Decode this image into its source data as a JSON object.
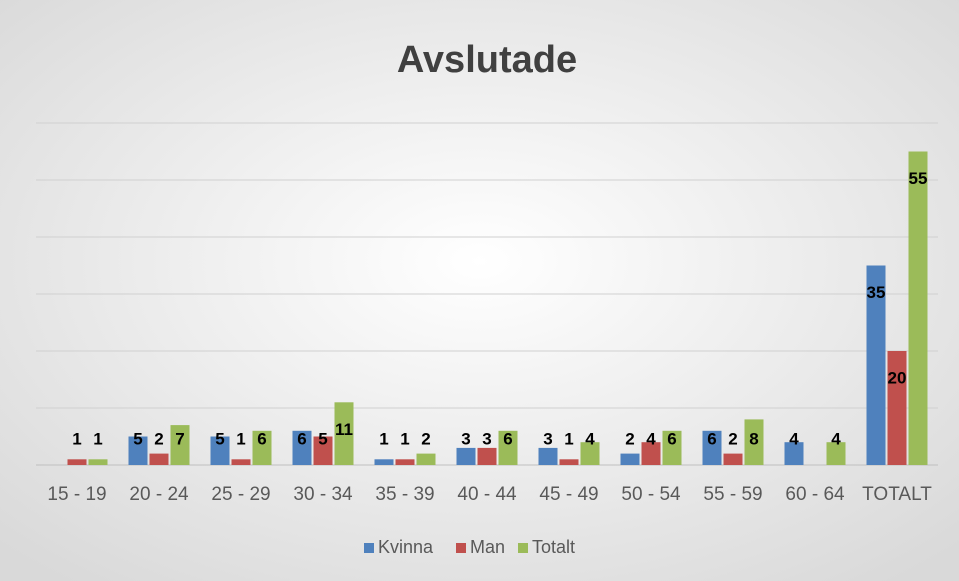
{
  "chart_data": {
    "type": "bar",
    "title": "Avslutade",
    "categories": [
      "15 - 19",
      "20 - 24",
      "25 - 29",
      "30 - 34",
      "35 - 39",
      "40 - 44",
      "45 - 49",
      "50 - 54",
      "55 - 59",
      "60 - 64",
      "TOTALT"
    ],
    "series": [
      {
        "name": "Kvinna",
        "color": "#4f81bd",
        "values": [
          null,
          5,
          5,
          6,
          1,
          3,
          3,
          2,
          6,
          4,
          35
        ]
      },
      {
        "name": "Man",
        "color": "#c0504d",
        "values": [
          1,
          2,
          1,
          5,
          1,
          3,
          1,
          4,
          2,
          null,
          20
        ]
      },
      {
        "name": "Totalt",
        "color": "#9bbb59",
        "values": [
          1,
          7,
          6,
          11,
          2,
          6,
          4,
          6,
          8,
          4,
          55
        ]
      }
    ],
    "ylim": [
      0,
      60
    ],
    "yticks": [
      0,
      10,
      20,
      30,
      40,
      50,
      60
    ],
    "grid": true,
    "legend": "bottom"
  }
}
